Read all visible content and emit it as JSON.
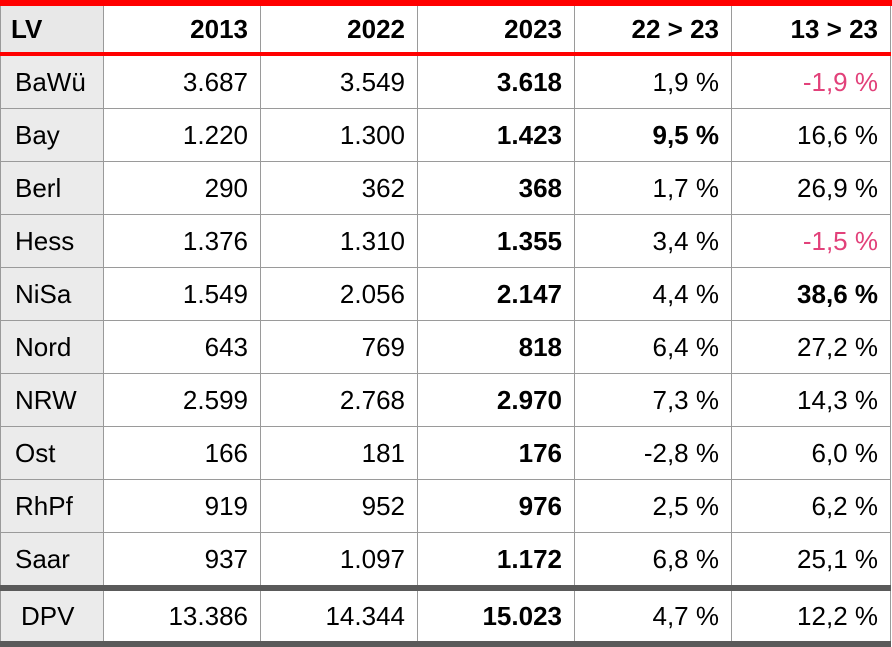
{
  "headers": [
    "LV",
    "2013",
    "2022",
    "2023",
    "22 > 23",
    "13 > 23"
  ],
  "rows": [
    {
      "lv": "BaWü",
      "y2013": "3.687",
      "y2022": "3.549",
      "y2023": "3.618",
      "c2223": "1,9 %",
      "c1323": "-1,9 %"
    },
    {
      "lv": "Bay",
      "y2013": "1.220",
      "y2022": "1.300",
      "y2023": "1.423",
      "c2223": "9,5 %",
      "c1323": "16,6 %"
    },
    {
      "lv": "Berl",
      "y2013": "290",
      "y2022": "362",
      "y2023": "368",
      "c2223": "1,7 %",
      "c1323": "26,9 %"
    },
    {
      "lv": "Hess",
      "y2013": "1.376",
      "y2022": "1.310",
      "y2023": "1.355",
      "c2223": "3,4 %",
      "c1323": "-1,5 %"
    },
    {
      "lv": "NiSa",
      "y2013": "1.549",
      "y2022": "2.056",
      "y2023": "2.147",
      "c2223": "4,4 %",
      "c1323": "38,6 %"
    },
    {
      "lv": "Nord",
      "y2013": "643",
      "y2022": "769",
      "y2023": "818",
      "c2223": "6,4 %",
      "c1323": "27,2 %"
    },
    {
      "lv": "NRW",
      "y2013": "2.599",
      "y2022": "2.768",
      "y2023": "2.970",
      "c2223": "7,3 %",
      "c1323": "14,3 %"
    },
    {
      "lv": "Ost",
      "y2013": "166",
      "y2022": "181",
      "y2023": "176",
      "c2223": "-2,8 %",
      "c1323": "6,0 %"
    },
    {
      "lv": "RhPf",
      "y2013": "919",
      "y2022": "952",
      "y2023": "976",
      "c2223": "2,5 %",
      "c1323": "6,2 %"
    },
    {
      "lv": "Saar",
      "y2013": "937",
      "y2022": "1.097",
      "y2023": "1.172",
      "c2223": "6,8 %",
      "c1323": "25,1 %"
    }
  ],
  "total": {
    "lv": "DPV",
    "y2013": "13.386",
    "y2022": "14.344",
    "y2023": "15.023",
    "c2223": "4,7 %",
    "c1323": "12,2 %"
  },
  "colors": {
    "accent_red": "#ff0000",
    "negative": "#e2417a",
    "label_bg": "#ebebeb",
    "total_rule": "#5a5a5a"
  }
}
